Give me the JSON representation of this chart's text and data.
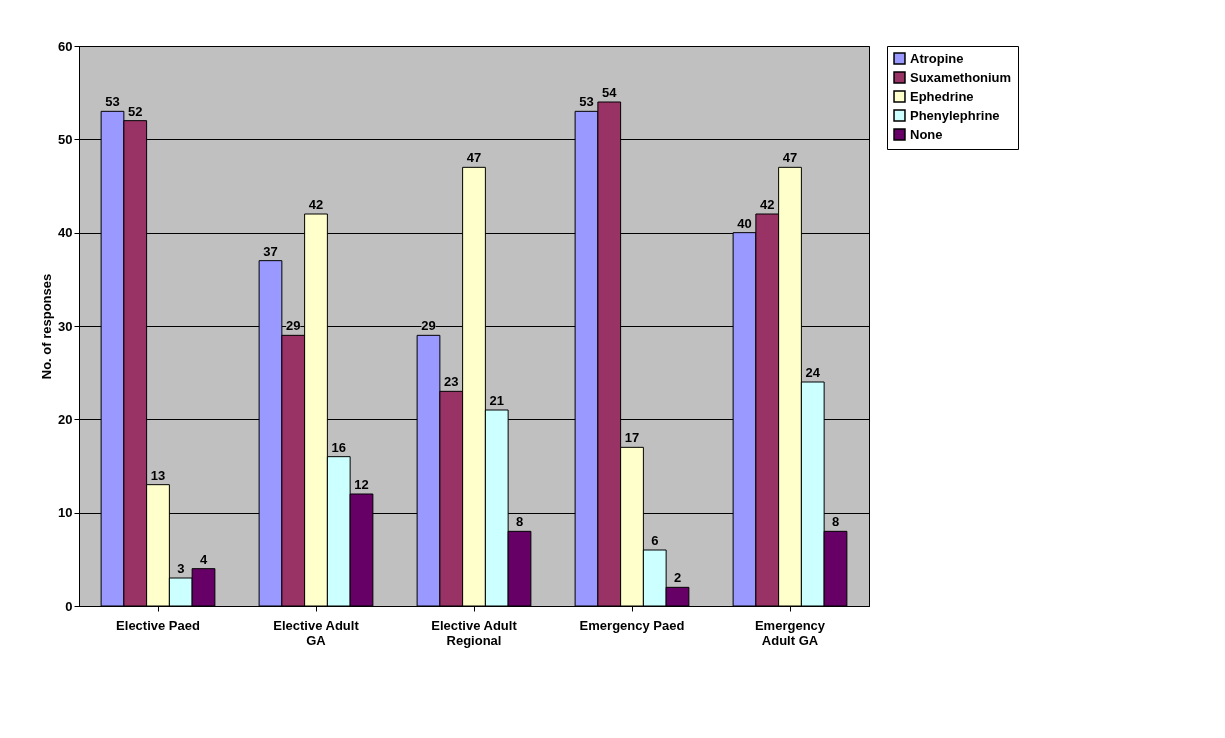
{
  "chart_data": {
    "type": "bar",
    "ylabel": "No. of responses",
    "categories": [
      "Elective Paed",
      "Elective Adult GA",
      "Elective Adult Regional",
      "Emergency Paed",
      "Emergency Adult GA"
    ],
    "series": [
      {
        "name": "Atropine",
        "color": "#9999ff",
        "values": [
          53,
          37,
          29,
          53,
          40
        ]
      },
      {
        "name": "Suxamethonium",
        "color": "#993366",
        "values": [
          52,
          29,
          23,
          54,
          42
        ]
      },
      {
        "name": "Ephedrine",
        "color": "#ffffcc",
        "values": [
          13,
          42,
          47,
          17,
          47
        ]
      },
      {
        "name": "Phenylephrine",
        "color": "#ccffff",
        "values": [
          3,
          16,
          21,
          6,
          24
        ]
      },
      {
        "name": "None",
        "color": "#660066",
        "values": [
          4,
          12,
          8,
          2,
          8
        ]
      }
    ],
    "ylim": [
      0,
      60
    ],
    "yticks": [
      0,
      10,
      20,
      30,
      40,
      50,
      60
    ],
    "grid": "y",
    "legend": "right",
    "data_labels": true
  }
}
